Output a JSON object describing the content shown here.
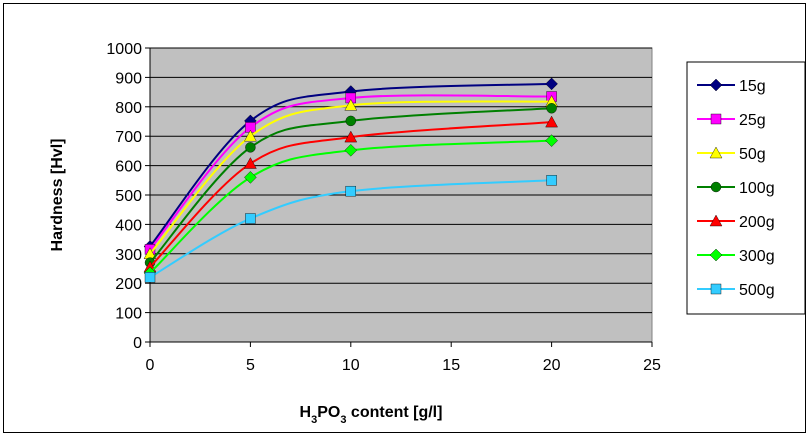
{
  "chart_data": {
    "type": "line",
    "title": "",
    "ylabel": "Hardness [Hvl]",
    "xlabel": {
      "parts": [
        {
          "text": "H",
          "sub": false
        },
        {
          "text": "3",
          "sub": true
        },
        {
          "text": "PO",
          "sub": false
        },
        {
          "text": "3",
          "sub": true
        },
        {
          "text": " content [g/l]",
          "sub": false
        }
      ]
    },
    "xlim": [
      0,
      25
    ],
    "ylim": [
      0,
      1000
    ],
    "xticks": [
      "0",
      "5",
      "10",
      "15",
      "20",
      "25"
    ],
    "yticks": [
      "0",
      "100",
      "200",
      "300",
      "400",
      "500",
      "600",
      "700",
      "800",
      "900",
      "1000"
    ],
    "grid": "horizontal",
    "plot_background": "#c0c0c0",
    "legend_position": "right",
    "x": [
      0,
      5,
      10,
      20
    ],
    "series": [
      {
        "name": "15g",
        "color": "#000080",
        "marker": "diamond",
        "values": [
          325,
          752,
          852,
          878
        ]
      },
      {
        "name": "25g",
        "color": "#ff00ff",
        "marker": "square",
        "values": [
          315,
          730,
          830,
          835
        ]
      },
      {
        "name": "50g",
        "color": "#ffff00",
        "marker": "triangle",
        "values": [
          300,
          700,
          805,
          818
        ]
      },
      {
        "name": "100g",
        "color": "#008000",
        "marker": "circle",
        "values": [
          270,
          662,
          752,
          795
        ]
      },
      {
        "name": "200g",
        "color": "#ff0000",
        "marker": "triangle",
        "values": [
          255,
          607,
          697,
          748
        ]
      },
      {
        "name": "300g",
        "color": "#00ff00",
        "marker": "diamond",
        "values": [
          235,
          560,
          652,
          685
        ]
      },
      {
        "name": "500g",
        "color": "#33ccff",
        "marker": "square",
        "values": [
          220,
          420,
          513,
          550
        ]
      }
    ]
  }
}
